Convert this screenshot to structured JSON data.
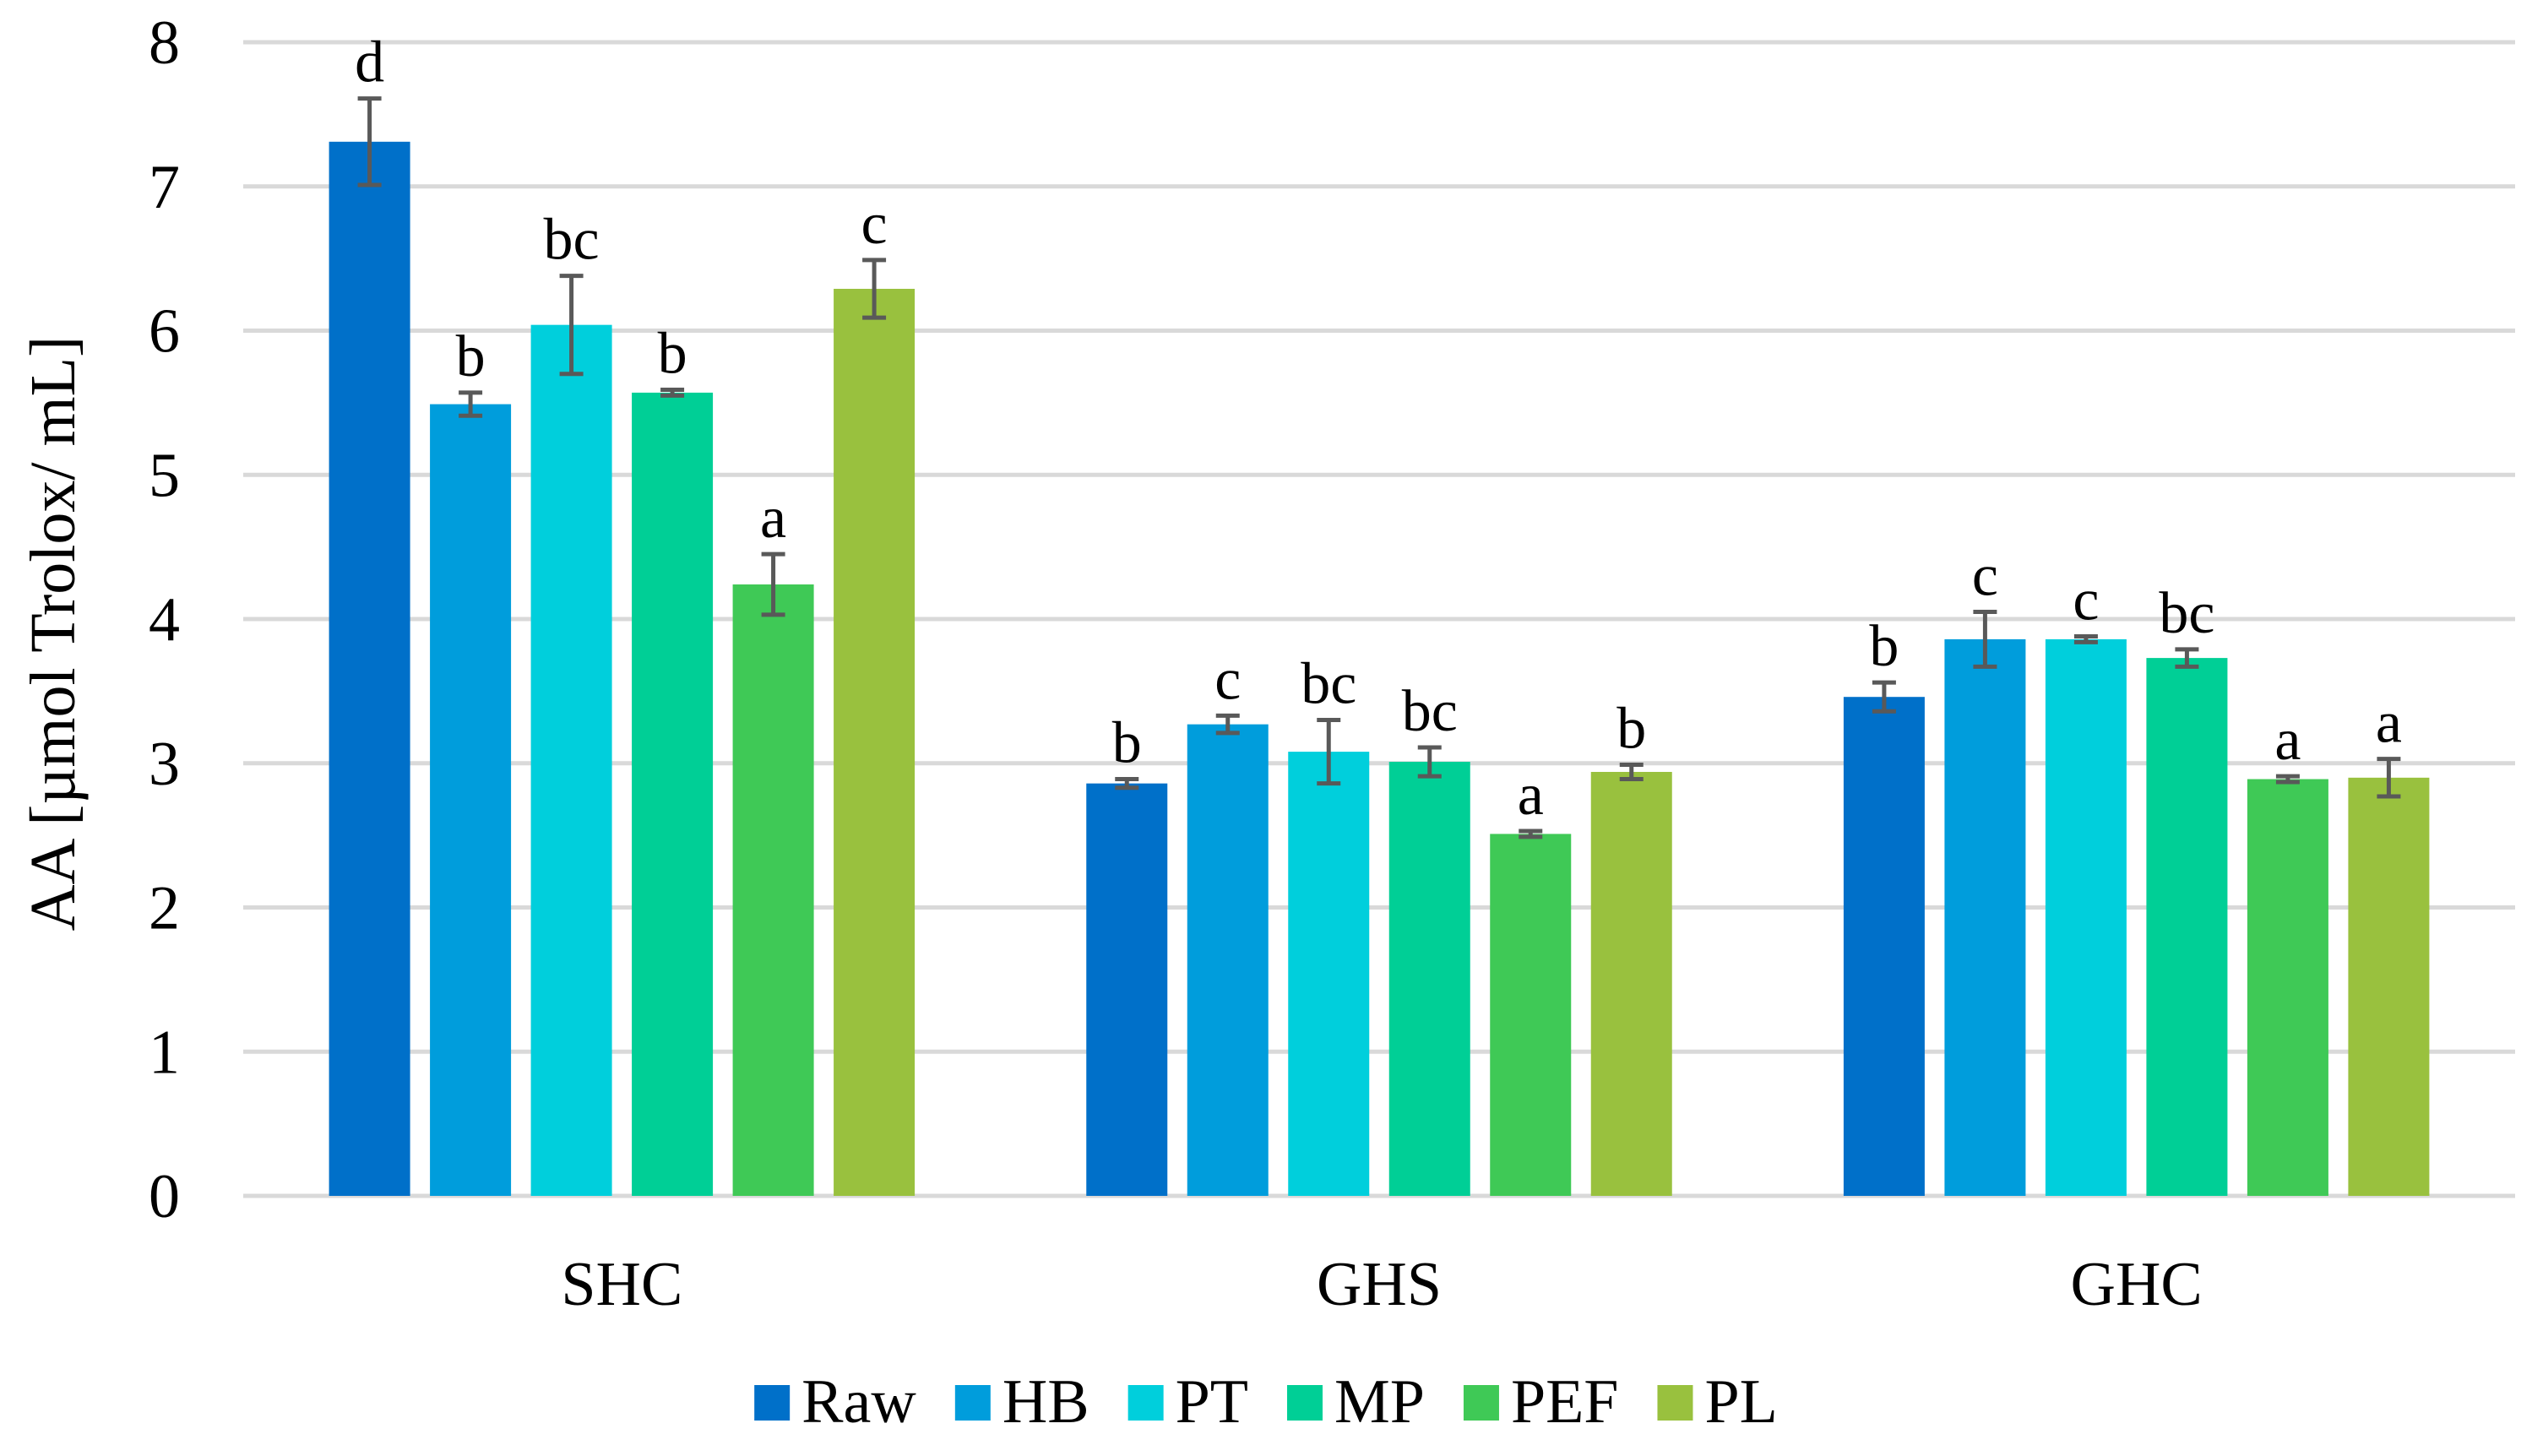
{
  "chart_data": {
    "type": "bar",
    "title": "",
    "xlabel": "",
    "ylabel": "AA [µmol Trolox/ mL]",
    "ylim": [
      0,
      8
    ],
    "yticks": [
      "0",
      "1",
      "2",
      "3",
      "4",
      "5",
      "6",
      "7",
      "8"
    ],
    "grid": true,
    "legend_position": "bottom",
    "categories": [
      "SHC",
      "GHS",
      "GHC"
    ],
    "series": [
      {
        "name": "Raw",
        "color": "#0070C9",
        "values": [
          7.31,
          2.86,
          3.46
        ],
        "errors": [
          0.3,
          0.03,
          0.1
        ],
        "labels": [
          "d",
          "b",
          "b"
        ]
      },
      {
        "name": "HB",
        "color": "#009DDC",
        "values": [
          5.49,
          3.27,
          3.86
        ],
        "errors": [
          0.08,
          0.06,
          0.19
        ],
        "labels": [
          "b",
          "c",
          "c"
        ]
      },
      {
        "name": "PT",
        "color": "#00CFDC",
        "values": [
          6.04,
          3.08,
          3.86
        ],
        "errors": [
          0.34,
          0.22,
          0.02
        ],
        "labels": [
          "bc",
          "bc",
          "c"
        ]
      },
      {
        "name": "MP",
        "color": "#00CF96",
        "values": [
          5.57,
          3.01,
          3.73
        ],
        "errors": [
          0.02,
          0.1,
          0.06
        ],
        "labels": [
          "b",
          "bc",
          "bc"
        ]
      },
      {
        "name": "PEF",
        "color": "#3FC956",
        "values": [
          4.24,
          2.51,
          2.89
        ],
        "errors": [
          0.21,
          0.02,
          0.02
        ],
        "labels": [
          "a",
          "a",
          "a"
        ]
      },
      {
        "name": "PL",
        "color": "#99C13E",
        "values": [
          6.29,
          2.94,
          2.9
        ],
        "errors": [
          0.2,
          0.05,
          0.13
        ],
        "labels": [
          "c",
          "b",
          "a"
        ]
      }
    ]
  }
}
